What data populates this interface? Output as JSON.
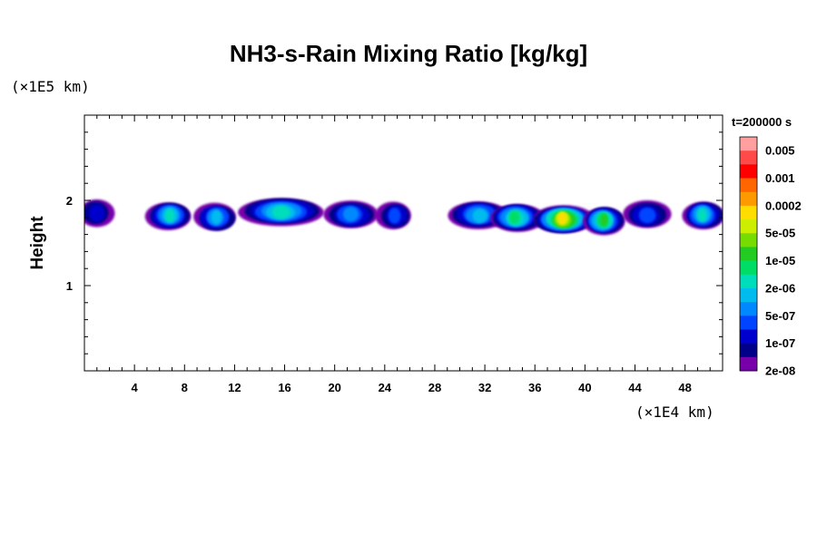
{
  "chart_data": {
    "type": "heatmap",
    "title": "NH3-s-Rain Mixing Ratio [kg/kg]",
    "ylabel": "Height",
    "y_unit_label": "(×1E5 km)",
    "x_unit_label": "(×1E4 km)",
    "xlim": [
      0,
      51
    ],
    "ylim": [
      0,
      3
    ],
    "x_ticks": [
      4,
      8,
      12,
      16,
      20,
      24,
      28,
      32,
      36,
      40,
      44,
      48
    ],
    "y_ticks": [
      1,
      2
    ],
    "colorbar_title": "t=200000 s",
    "colorbar_labels": [
      "0.005",
      "0.001",
      "0.0002",
      "5e-05",
      "1e-05",
      "2e-06",
      "5e-07",
      "1e-07",
      "2e-08"
    ],
    "colorbar_colors": [
      "#ff9f9f",
      "#ff4a4a",
      "#ff0000",
      "#ff6600",
      "#ff9900",
      "#ffdd00",
      "#ccee00",
      "#77dd00",
      "#22cc22",
      "#00dd66",
      "#00ddbb",
      "#00bbee",
      "#0088ff",
      "#0044ff",
      "#0000cc",
      "#000088",
      "#7700aa"
    ],
    "features": [
      {
        "x_center": 1.0,
        "x_extent": 2.0,
        "y_center": 1.85,
        "level": 2
      },
      {
        "x_center": 6.8,
        "x_extent": 2.8,
        "y_center": 1.82,
        "level": 6
      },
      {
        "x_center": 10.5,
        "x_extent": 2.5,
        "y_center": 1.8,
        "level": 5
      },
      {
        "x_center": 15.8,
        "x_extent": 6.0,
        "y_center": 1.87,
        "level": 6
      },
      {
        "x_center": 21.3,
        "x_extent": 3.5,
        "y_center": 1.83,
        "level": 4
      },
      {
        "x_center": 24.8,
        "x_extent": 2.0,
        "y_center": 1.82,
        "level": 3
      },
      {
        "x_center": 31.5,
        "x_extent": 4.0,
        "y_center": 1.83,
        "level": 5
      },
      {
        "x_center": 34.5,
        "x_extent": 3.5,
        "y_center": 1.8,
        "level": 7
      },
      {
        "x_center": 38.3,
        "x_extent": 4.0,
        "y_center": 1.78,
        "level": 11
      },
      {
        "x_center": 41.5,
        "x_extent": 2.5,
        "y_center": 1.76,
        "level": 8
      },
      {
        "x_center": 45.0,
        "x_extent": 3.0,
        "y_center": 1.83,
        "level": 3
      },
      {
        "x_center": 49.5,
        "x_extent": 2.5,
        "y_center": 1.83,
        "level": 6
      }
    ]
  }
}
